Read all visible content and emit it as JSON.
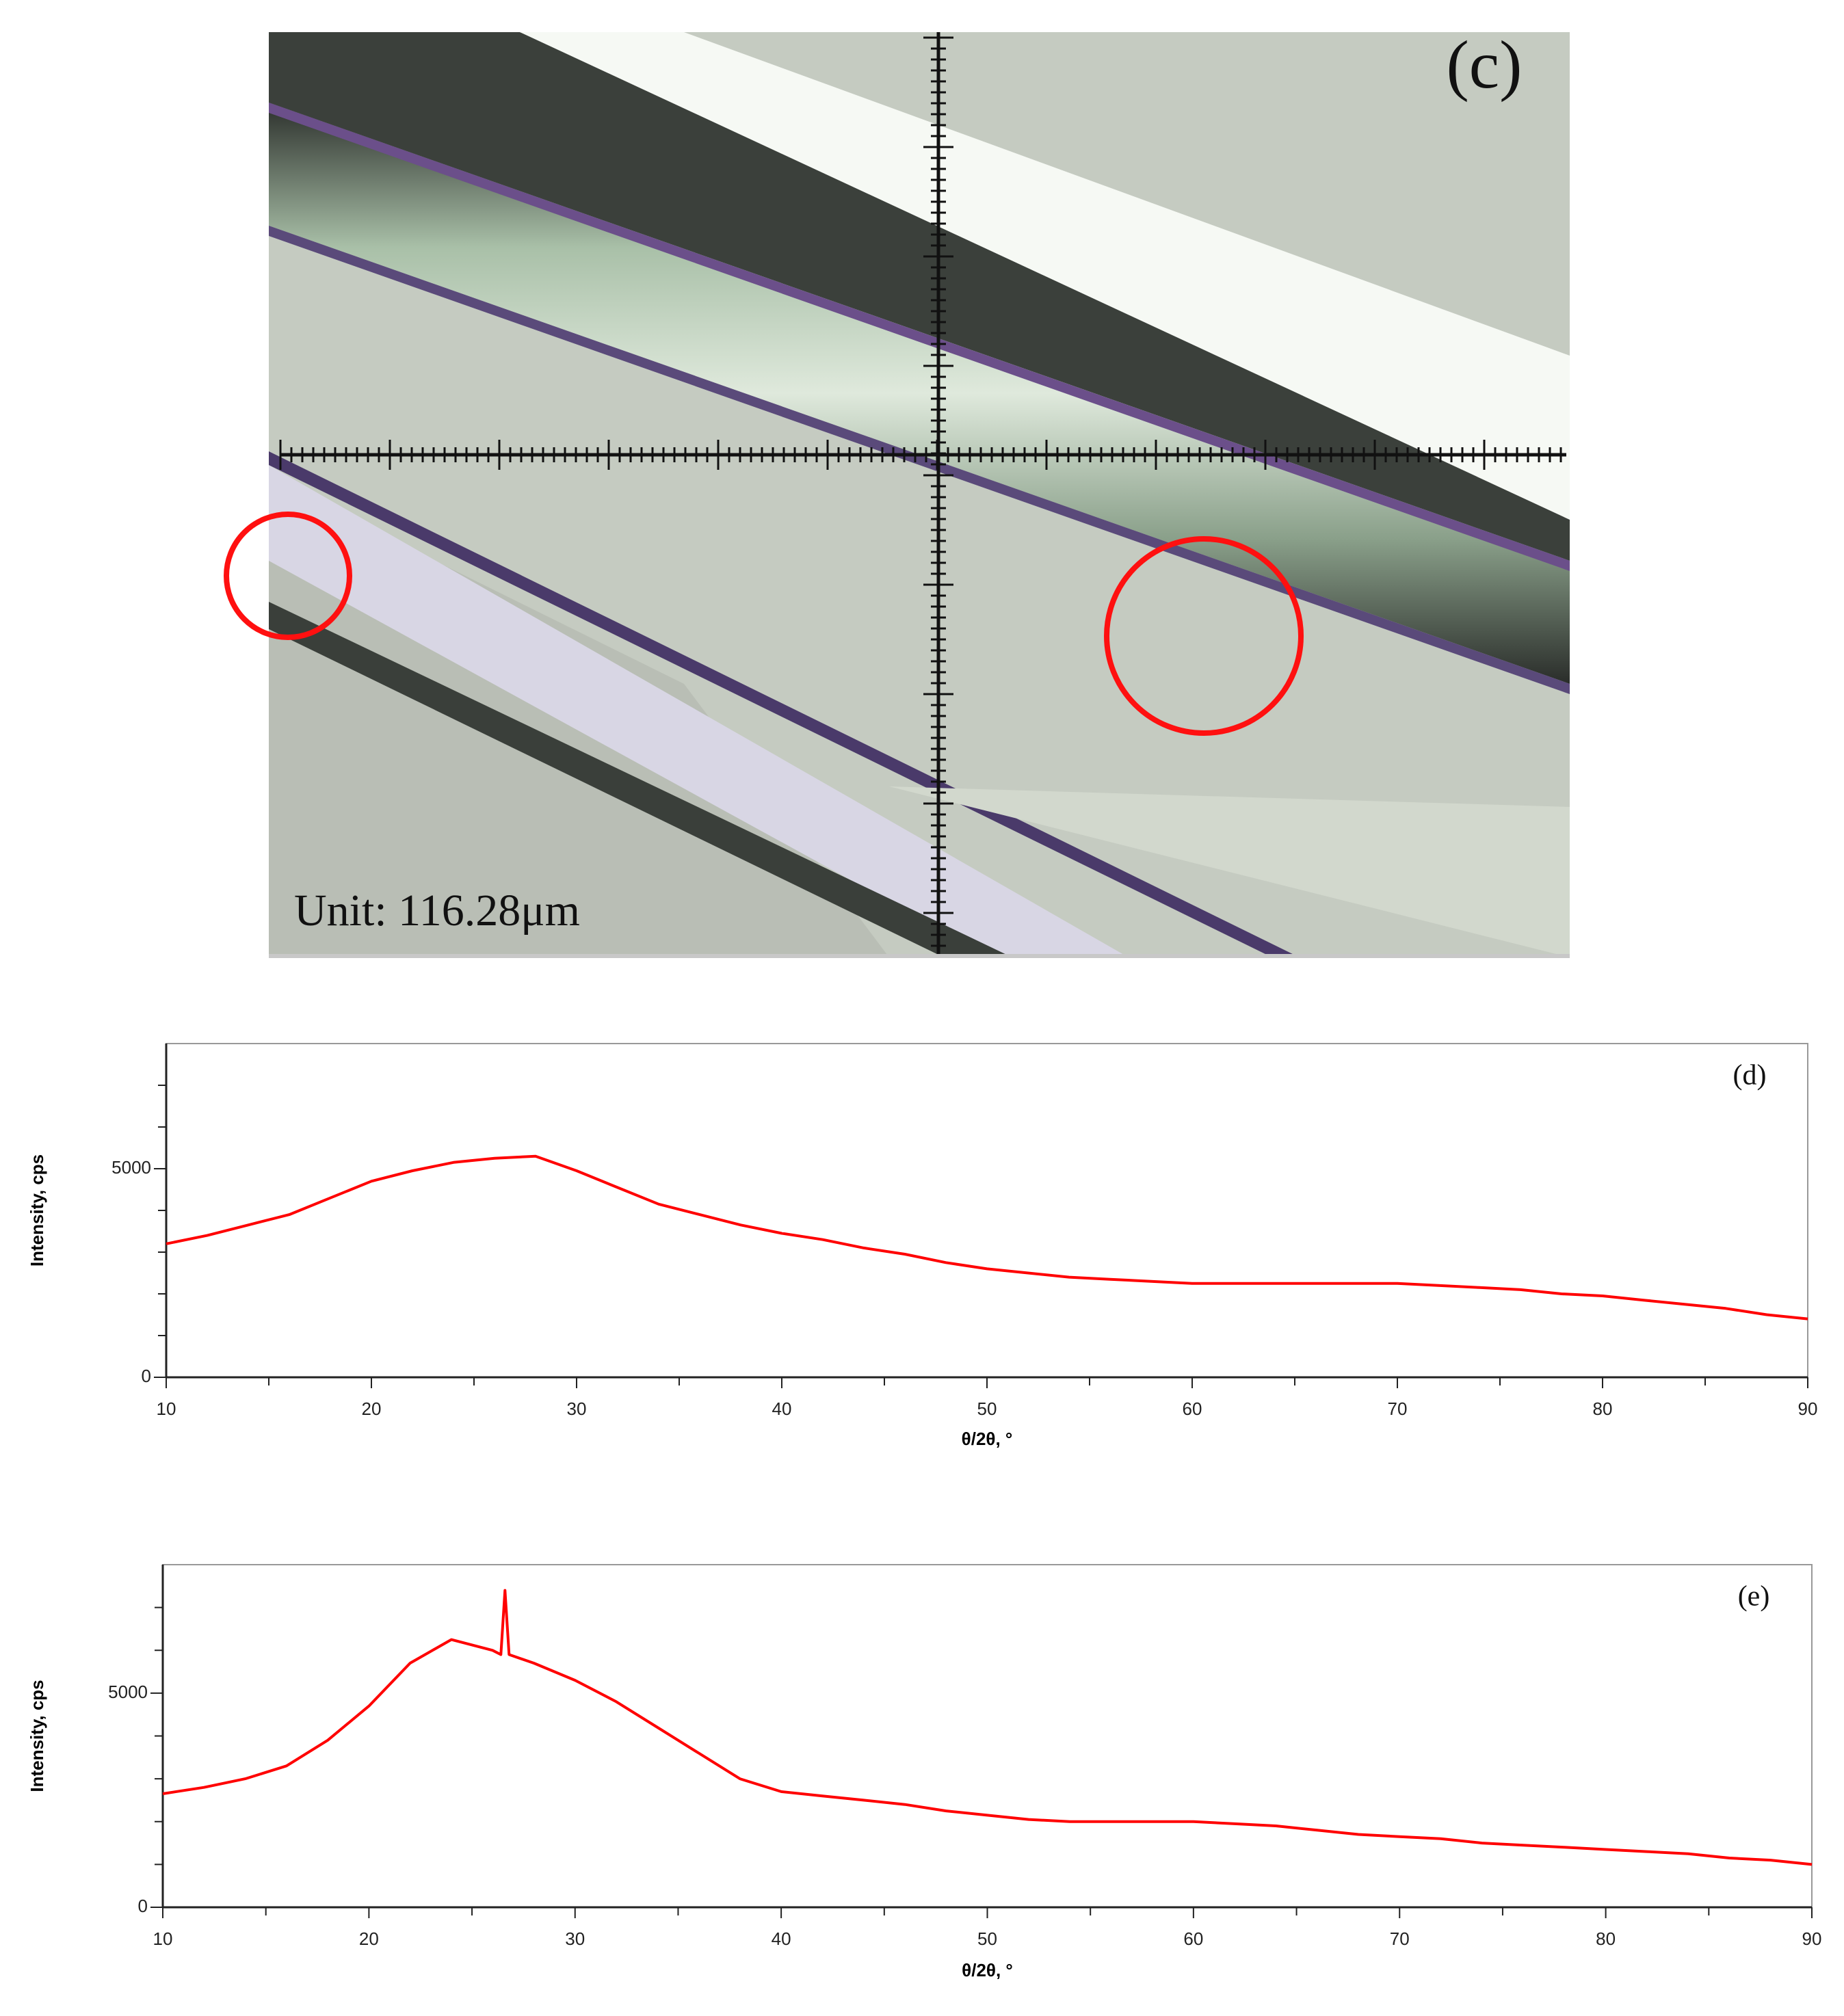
{
  "micrograph": {
    "label": "(c)",
    "scale_text": "Unit: 116.28μm"
  },
  "chart_data": [
    {
      "type": "line",
      "label": "(d)",
      "x_label": "θ/2θ, °",
      "y_label": "Intensity, cps",
      "xlim": [
        10,
        90
      ],
      "xticks": [
        10,
        20,
        30,
        40,
        50,
        60,
        70,
        80,
        90
      ],
      "xminor": [
        15,
        25,
        35,
        45,
        55,
        65,
        75,
        85
      ],
      "ylim": [
        0,
        8000
      ],
      "yticks": [
        0,
        5000
      ],
      "yminor": [
        1000,
        2000,
        3000,
        4000,
        6000,
        7000
      ],
      "series": [
        {
          "color": "#ff0000",
          "x": [
            10,
            12,
            14,
            16,
            18,
            20,
            22,
            24,
            26,
            28,
            30,
            32,
            34,
            36,
            38,
            40,
            42,
            44,
            46,
            48,
            50,
            52,
            54,
            56,
            58,
            60,
            62,
            64,
            66,
            68,
            70,
            72,
            74,
            76,
            78,
            80,
            82,
            84,
            86,
            88,
            90
          ],
          "values": [
            3200,
            3400,
            3650,
            3900,
            4300,
            4700,
            4950,
            5150,
            5250,
            5300,
            4950,
            4550,
            4150,
            3900,
            3650,
            3450,
            3300,
            3100,
            2950,
            2750,
            2600,
            2500,
            2400,
            2350,
            2300,
            2250,
            2250,
            2250,
            2250,
            2250,
            2250,
            2200,
            2150,
            2100,
            2000,
            1950,
            1850,
            1750,
            1650,
            1500,
            1400
          ]
        }
      ]
    },
    {
      "type": "line",
      "label": "(e)",
      "x_label": "θ/2θ, °",
      "y_label": "Intensity, cps",
      "xlim": [
        10,
        90
      ],
      "xticks": [
        10,
        20,
        30,
        40,
        50,
        60,
        70,
        80,
        90
      ],
      "xminor": [
        15,
        25,
        35,
        45,
        55,
        65,
        75,
        85
      ],
      "ylim": [
        0,
        8000
      ],
      "yticks": [
        0,
        5000
      ],
      "yminor": [
        1000,
        2000,
        3000,
        4000,
        6000,
        7000
      ],
      "series": [
        {
          "color": "#ff0000",
          "x": [
            10,
            12,
            14,
            16,
            18,
            20,
            22,
            24,
            26,
            26.4,
            26.6,
            26.8,
            28,
            30,
            32,
            34,
            36,
            38,
            40,
            42,
            44,
            46,
            48,
            50,
            52,
            54,
            56,
            58,
            60,
            62,
            64,
            66,
            68,
            70,
            72,
            74,
            76,
            78,
            80,
            82,
            84,
            86,
            88,
            90
          ],
          "values": [
            2650,
            2800,
            3000,
            3300,
            3900,
            4700,
            5700,
            6250,
            6000,
            5900,
            7400,
            5900,
            5700,
            5300,
            4800,
            4200,
            3600,
            3000,
            2700,
            2600,
            2500,
            2400,
            2250,
            2150,
            2050,
            2000,
            2000,
            2000,
            2000,
            1950,
            1900,
            1800,
            1700,
            1650,
            1600,
            1500,
            1450,
            1400,
            1350,
            1300,
            1250,
            1150,
            1100,
            1000
          ]
        }
      ]
    }
  ]
}
